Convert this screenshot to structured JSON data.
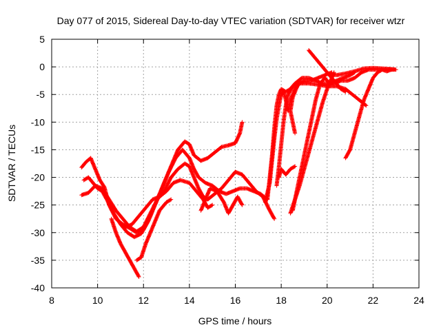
{
  "chart_data": {
    "type": "scatter",
    "title": "Day 077 of 2015, Sidereal Day-to-day VTEC variation (SDTVAR) for receiver wtzr",
    "xlabel": "GPS time / hours",
    "ylabel": "SDTVAR / TECUs",
    "xlim": [
      8,
      24
    ],
    "ylim": [
      -40,
      5
    ],
    "xticks": [
      "8",
      "10",
      "12",
      "14",
      "16",
      "18",
      "20",
      "22",
      "24"
    ],
    "yticks": [
      "5",
      "0",
      "-5",
      "-10",
      "-15",
      "-20",
      "-25",
      "-30",
      "-35",
      "-40"
    ],
    "grid": true,
    "marker": "plus",
    "series_color": "#ff0000",
    "series": [
      {
        "points": [
          [
            9.3,
            -18.2
          ],
          [
            9.5,
            -17.2
          ],
          [
            9.7,
            -16.5
          ],
          [
            9.9,
            -18.5
          ],
          [
            10.1,
            -20.5
          ],
          [
            10.3,
            -21.8
          ],
          [
            10.5,
            -25
          ],
          [
            10.8,
            -27.5
          ],
          [
            11.1,
            -28.5
          ],
          [
            11.4,
            -29.2
          ],
          [
            11.7,
            -30
          ],
          [
            12.0,
            -29.5
          ],
          [
            12.3,
            -27
          ],
          [
            12.6,
            -24
          ],
          [
            12.9,
            -21
          ],
          [
            13.2,
            -18
          ],
          [
            13.5,
            -15
          ],
          [
            13.8,
            -13.5
          ],
          [
            14.0,
            -14
          ],
          [
            14.2,
            -16
          ],
          [
            14.5,
            -17
          ],
          [
            14.8,
            -16.5
          ],
          [
            15.1,
            -15.5
          ],
          [
            15.4,
            -14.5
          ],
          [
            15.7,
            -14.2
          ],
          [
            16.0,
            -13.8
          ],
          [
            16.2,
            -12
          ],
          [
            16.3,
            -10
          ]
        ]
      },
      {
        "points": [
          [
            9.3,
            -23.2
          ],
          [
            9.6,
            -22.8
          ],
          [
            9.9,
            -21.5
          ],
          [
            10.2,
            -22
          ],
          [
            10.5,
            -24
          ],
          [
            10.8,
            -26
          ],
          [
            11.1,
            -27.5
          ],
          [
            11.4,
            -29
          ],
          [
            11.7,
            -29.8
          ],
          [
            12.0,
            -29
          ],
          [
            12.3,
            -26.5
          ],
          [
            12.6,
            -24
          ],
          [
            12.9,
            -22.5
          ],
          [
            13.2,
            -20
          ],
          [
            13.5,
            -18.5
          ],
          [
            13.8,
            -17.5
          ],
          [
            14.0,
            -18
          ],
          [
            14.2,
            -20
          ],
          [
            14.4,
            -22
          ],
          [
            14.6,
            -23.5
          ],
          [
            14.8,
            -24
          ],
          [
            15.1,
            -23
          ],
          [
            15.4,
            -22
          ],
          [
            15.7,
            -20.5
          ],
          [
            16.0,
            -19
          ],
          [
            16.3,
            -19.5
          ],
          [
            16.6,
            -21
          ],
          [
            16.9,
            -22.5
          ],
          [
            17.2,
            -23.5
          ],
          [
            17.5,
            -26
          ],
          [
            17.7,
            -27.5
          ]
        ]
      },
      {
        "points": [
          [
            9.4,
            -20.5
          ],
          [
            9.6,
            -20
          ],
          [
            9.8,
            -21
          ],
          [
            10.0,
            -22
          ],
          [
            10.2,
            -22.5
          ],
          [
            10.4,
            -24
          ],
          [
            10.7,
            -26.5
          ],
          [
            11.0,
            -28.5
          ],
          [
            11.3,
            -30
          ],
          [
            11.6,
            -30.8
          ],
          [
            11.9,
            -30.2
          ],
          [
            12.2,
            -28
          ],
          [
            12.5,
            -25
          ],
          [
            12.8,
            -22
          ],
          [
            13.1,
            -19
          ],
          [
            13.4,
            -16.5
          ],
          [
            13.7,
            -15
          ],
          [
            14.0,
            -16.5
          ],
          [
            14.2,
            -18.5
          ],
          [
            14.4,
            -20
          ],
          [
            14.7,
            -21
          ],
          [
            15.0,
            -21.5
          ],
          [
            15.3,
            -22.5
          ],
          [
            15.6,
            -23
          ],
          [
            15.9,
            -22.5
          ],
          [
            16.2,
            -22
          ],
          [
            16.5,
            -22
          ],
          [
            16.8,
            -22.5
          ],
          [
            17.1,
            -23
          ],
          [
            17.4,
            -24
          ]
        ]
      },
      {
        "points": [
          [
            10.6,
            -27.5
          ],
          [
            10.8,
            -30
          ],
          [
            11.0,
            -32
          ],
          [
            11.2,
            -33.5
          ],
          [
            11.4,
            -35
          ],
          [
            11.6,
            -36.5
          ],
          [
            11.8,
            -38
          ]
        ]
      },
      {
        "points": [
          [
            11.7,
            -35
          ],
          [
            11.9,
            -34.5
          ],
          [
            12.1,
            -32
          ],
          [
            12.4,
            -29
          ],
          [
            12.7,
            -26
          ],
          [
            13.0,
            -24.5
          ],
          [
            13.2,
            -24
          ]
        ]
      },
      {
        "points": [
          [
            11.2,
            -29
          ],
          [
            11.5,
            -28.5
          ],
          [
            11.8,
            -27
          ],
          [
            12.1,
            -25.5
          ],
          [
            12.4,
            -24
          ],
          [
            12.7,
            -23.5
          ],
          [
            13.0,
            -22.5
          ],
          [
            13.3,
            -21
          ],
          [
            13.6,
            -20.5
          ],
          [
            14.0,
            -21
          ],
          [
            14.3,
            -22.5
          ],
          [
            14.6,
            -24
          ],
          [
            14.8,
            -25.5
          ],
          [
            15.0,
            -25
          ]
        ]
      },
      {
        "points": [
          [
            14.5,
            -26
          ],
          [
            14.7,
            -24
          ],
          [
            14.9,
            -22
          ],
          [
            15.2,
            -22.5
          ],
          [
            15.5,
            -24.5
          ],
          [
            15.7,
            -26.5
          ],
          [
            15.9,
            -25
          ],
          [
            16.1,
            -23.5
          ],
          [
            16.3,
            -25
          ]
        ]
      },
      {
        "points": [
          [
            17.3,
            -24.5
          ],
          [
            17.5,
            -21
          ],
          [
            17.6,
            -17
          ],
          [
            17.7,
            -13
          ],
          [
            17.8,
            -9.5
          ],
          [
            17.9,
            -7
          ],
          [
            18.0,
            -5
          ],
          [
            18.1,
            -4.5
          ],
          [
            18.2,
            -6
          ],
          [
            18.3,
            -8
          ],
          [
            18.4,
            -6
          ],
          [
            18.6,
            -4
          ],
          [
            18.8,
            -3
          ],
          [
            19.0,
            -2.5
          ],
          [
            19.3,
            -2.5
          ],
          [
            19.6,
            -2
          ],
          [
            19.9,
            -1.5
          ],
          [
            20.2,
            -1
          ]
        ]
      },
      {
        "points": [
          [
            17.4,
            -24
          ],
          [
            17.5,
            -20
          ],
          [
            17.6,
            -16
          ],
          [
            17.7,
            -11
          ],
          [
            17.8,
            -7
          ],
          [
            17.9,
            -5
          ],
          [
            18.0,
            -4
          ],
          [
            18.2,
            -4.5
          ],
          [
            18.4,
            -4
          ],
          [
            18.6,
            -3
          ],
          [
            18.9,
            -2
          ],
          [
            19.2,
            -2
          ],
          [
            19.5,
            -2.5
          ],
          [
            19.8,
            -3
          ],
          [
            20.1,
            -3
          ],
          [
            20.4,
            -2.5
          ],
          [
            20.7,
            -2
          ],
          [
            21.0,
            -1.5
          ],
          [
            21.2,
            -1
          ]
        ]
      },
      {
        "points": [
          [
            17.8,
            -21.5
          ],
          [
            17.9,
            -18
          ],
          [
            18.0,
            -14
          ],
          [
            18.1,
            -10
          ],
          [
            18.2,
            -7
          ],
          [
            18.3,
            -5
          ],
          [
            18.5,
            -3.5
          ],
          [
            18.8,
            -3
          ],
          [
            19.2,
            -3
          ],
          [
            19.6,
            -3.2
          ],
          [
            20.0,
            -3.5
          ],
          [
            20.4,
            -3.5
          ],
          [
            20.8,
            -4
          ],
          [
            21.1,
            -5
          ],
          [
            21.4,
            -6
          ],
          [
            21.7,
            -7
          ]
        ]
      },
      {
        "points": [
          [
            17.9,
            -20
          ],
          [
            18.0,
            -18.5
          ],
          [
            18.2,
            -19.5
          ],
          [
            18.4,
            -18.5
          ],
          [
            18.6,
            -18
          ]
        ]
      },
      {
        "points": [
          [
            18.6,
            -12
          ],
          [
            18.5,
            -10
          ],
          [
            18.4,
            -8
          ],
          [
            18.5,
            -5.5
          ],
          [
            18.6,
            -4.5
          ],
          [
            18.7,
            -3.5
          ]
        ]
      },
      {
        "points": [
          [
            18.4,
            -26.5
          ],
          [
            18.6,
            -24
          ],
          [
            18.8,
            -21.5
          ],
          [
            19.0,
            -18.5
          ],
          [
            19.2,
            -15.5
          ],
          [
            19.4,
            -12.5
          ],
          [
            19.6,
            -9.5
          ],
          [
            19.8,
            -6.5
          ],
          [
            20.0,
            -4
          ],
          [
            20.2,
            -2
          ],
          [
            20.3,
            -1
          ]
        ]
      },
      {
        "points": [
          [
            18.5,
            -26
          ],
          [
            18.7,
            -22
          ],
          [
            18.9,
            -18
          ],
          [
            19.1,
            -14
          ],
          [
            19.3,
            -10
          ],
          [
            19.5,
            -6
          ],
          [
            19.7,
            -3
          ],
          [
            19.9,
            -2
          ],
          [
            20.1,
            -3
          ],
          [
            20.3,
            -3
          ],
          [
            20.6,
            -2.5
          ],
          [
            20.9,
            -2.5
          ],
          [
            21.2,
            -2
          ],
          [
            21.5,
            -1
          ],
          [
            21.8,
            -0.5
          ],
          [
            22.1,
            -0.5
          ],
          [
            22.4,
            -0.5
          ],
          [
            22.7,
            -0.5
          ],
          [
            22.9,
            -0.5
          ]
        ]
      },
      {
        "points": [
          [
            19.2,
            3
          ],
          [
            19.4,
            2
          ],
          [
            19.6,
            1
          ],
          [
            19.8,
            0
          ],
          [
            20.0,
            -1
          ],
          [
            20.2,
            -2
          ],
          [
            20.4,
            -3
          ],
          [
            20.6,
            -4
          ],
          [
            20.8,
            -4.5
          ]
        ]
      },
      {
        "points": [
          [
            20.8,
            -16.5
          ],
          [
            21.0,
            -15
          ],
          [
            21.2,
            -12
          ],
          [
            21.4,
            -9
          ],
          [
            21.6,
            -6
          ],
          [
            21.8,
            -4
          ],
          [
            22.0,
            -2
          ],
          [
            22.2,
            -1
          ],
          [
            22.4,
            -0.5
          ],
          [
            22.6,
            -0.8
          ],
          [
            22.8,
            -0.5
          ]
        ]
      },
      {
        "points": [
          [
            20.0,
            -1.2
          ],
          [
            20.4,
            -1.5
          ],
          [
            20.8,
            -1.2
          ],
          [
            21.2,
            -0.8
          ],
          [
            21.6,
            -0.3
          ],
          [
            22.0,
            -0.2
          ],
          [
            22.4,
            -0.3
          ],
          [
            22.8,
            -0.4
          ],
          [
            23.0,
            -0.5
          ]
        ]
      }
    ]
  }
}
